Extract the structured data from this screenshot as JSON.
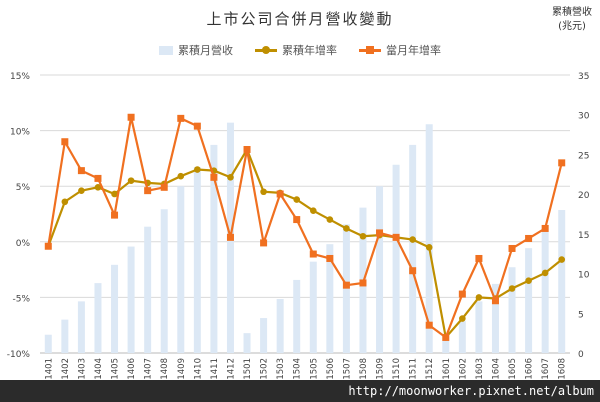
{
  "chart_data": {
    "type": "bar+line",
    "title": "上市公司合併月營收變動",
    "y2label": [
      "累積營收",
      "(兆元)"
    ],
    "categories": [
      "201401",
      "201402",
      "201403",
      "201404",
      "201405",
      "201406",
      "201407",
      "201408",
      "201409",
      "201410",
      "201411",
      "201412",
      "201501",
      "201502",
      "201503",
      "201504",
      "201505",
      "201506",
      "201507",
      "201508",
      "201509",
      "201510",
      "201511",
      "201512",
      "201601",
      "201602",
      "201603",
      "201604",
      "201605",
      "201606",
      "201607",
      "201608"
    ],
    "y_left": {
      "min": -10,
      "max": 15,
      "step": 5,
      "ticks": [
        "-10%",
        "-5%",
        "0%",
        "5%",
        "10%",
        "15%"
      ]
    },
    "y_right": {
      "min": 0,
      "max": 35,
      "step": 5,
      "ticks": [
        "0",
        "5",
        "10",
        "15",
        "20",
        "25",
        "30",
        "35"
      ]
    },
    "grid": true,
    "legend_position": "top",
    "series": [
      {
        "name": "累積月營收",
        "type": "bar",
        "axis": "right",
        "color": "#dce8f5",
        "values": [
          2.3,
          4.2,
          6.5,
          8.8,
          11.1,
          13.4,
          15.9,
          18.1,
          21.0,
          23.4,
          26.2,
          29.0,
          2.5,
          4.4,
          6.8,
          9.2,
          11.5,
          13.7,
          16.2,
          18.3,
          21.0,
          23.7,
          26.2,
          28.8,
          1.6,
          4.0,
          6.5,
          8.7,
          10.8,
          13.2,
          15.7,
          18.0
        ]
      },
      {
        "name": "累積年增率",
        "type": "line",
        "axis": "left",
        "color": "#bf8f00",
        "marker": "circle",
        "values": [
          -0.4,
          3.6,
          4.6,
          4.9,
          4.3,
          5.5,
          5.3,
          5.2,
          5.9,
          6.5,
          6.4,
          5.8,
          8.3,
          4.5,
          4.4,
          3.8,
          2.8,
          2.0,
          1.2,
          0.5,
          0.6,
          0.4,
          0.2,
          -0.5,
          -8.6,
          -6.9,
          -5.0,
          -5.1,
          -4.2,
          -3.5,
          -2.8,
          -1.6
        ]
      },
      {
        "name": "當月年增率",
        "type": "line",
        "axis": "left",
        "color": "#f07020",
        "marker": "square",
        "values": [
          -0.4,
          9.0,
          6.4,
          5.7,
          2.4,
          11.2,
          4.6,
          4.9,
          11.1,
          10.4,
          5.8,
          0.4,
          8.3,
          -0.1,
          4.3,
          2.0,
          -1.1,
          -1.5,
          -3.9,
          -3.7,
          0.8,
          0.4,
          -2.6,
          -7.5,
          -8.6,
          -4.7,
          -1.5,
          -5.3,
          -0.6,
          0.3,
          1.2,
          7.1
        ]
      }
    ]
  },
  "watermark": "http://moonworker.pixnet.net/album"
}
